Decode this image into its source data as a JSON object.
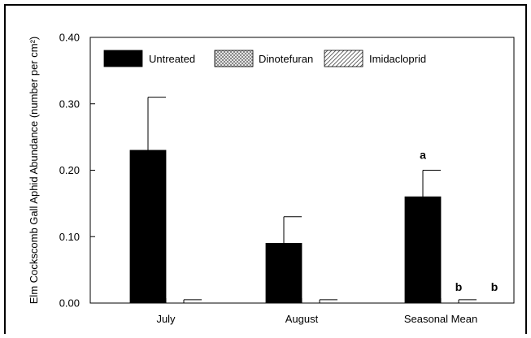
{
  "chart_data": {
    "type": "bar",
    "title": "",
    "xlabel": "",
    "ylabel": "Elm Cockscomb Gall Aphid Abundance (number per cm²)",
    "ylim": [
      0,
      0.4
    ],
    "yticks": [
      "0.00",
      "0.10",
      "0.20",
      "0.30",
      "0.40"
    ],
    "ytick_values": [
      0,
      0.1,
      0.2,
      0.3,
      0.4
    ],
    "categories": [
      "July",
      "August",
      "Seasonal Mean"
    ],
    "series": [
      {
        "name": "Untreated",
        "values": [
          0.23,
          0.09,
          0.16
        ],
        "errors": [
          0.08,
          0.04,
          0.04
        ],
        "pattern": "solid",
        "color": "#000000"
      },
      {
        "name": "Dinotefuran",
        "values": [
          0,
          0,
          0
        ],
        "errors": [
          0.005,
          0.005,
          0.005
        ],
        "pattern": "cross-hatch",
        "color": "#888888"
      },
      {
        "name": "Imidacloprid",
        "values": [
          0,
          0,
          0
        ],
        "errors": [
          0,
          0,
          0
        ],
        "pattern": "diagonal-hatch",
        "color": "#888888"
      }
    ],
    "annotations": [
      {
        "category": 2,
        "series": 0,
        "text": "a"
      },
      {
        "category": 2,
        "series": 1,
        "text": "b"
      },
      {
        "category": 2,
        "series": 2,
        "text": "b"
      }
    ],
    "legend": {
      "placement": "top",
      "orientation": "horizontal"
    },
    "grid": false
  }
}
